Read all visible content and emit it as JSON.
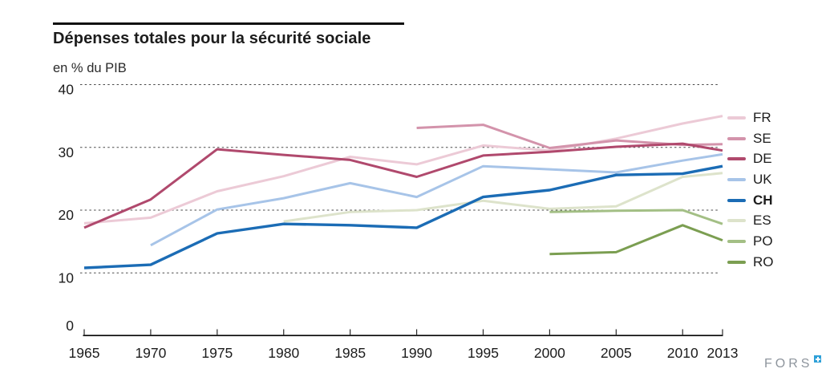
{
  "header": {
    "title": "Dépenses totales pour la sécurité sociale",
    "subtitle": "en % du PIB"
  },
  "chart_data": {
    "type": "line",
    "x": [
      1965,
      1970,
      1975,
      1980,
      1985,
      1990,
      1995,
      2000,
      2005,
      2010,
      2013
    ],
    "x_tick_labels": [
      "1965",
      "1970",
      "1975",
      "1980",
      "1985",
      "1990",
      "1995",
      "2000",
      "2005",
      "2010",
      "2013"
    ],
    "y_ticks": [
      0,
      10,
      20,
      30,
      40
    ],
    "ylim": [
      0,
      42
    ],
    "grid": "horizontal dashed at 10, 20, 30, 40",
    "legend_position": "right",
    "series": [
      {
        "name": "ES",
        "color": "#dde3cb",
        "bold": false,
        "values": [
          null,
          null,
          null,
          18.2,
          19.7,
          20.0,
          21.5,
          20.2,
          20.6,
          25.3,
          25.9
        ]
      },
      {
        "name": "PO",
        "color": "#a3bf85",
        "bold": false,
        "values": [
          null,
          null,
          null,
          null,
          null,
          null,
          null,
          19.7,
          19.9,
          20.0,
          17.8
        ]
      },
      {
        "name": "RO",
        "color": "#7b9e51",
        "bold": false,
        "values": [
          null,
          null,
          null,
          null,
          null,
          null,
          null,
          13.0,
          13.3,
          17.6,
          15.2
        ]
      },
      {
        "name": "FR",
        "color": "#eccad6",
        "bold": false,
        "values": [
          17.9,
          18.8,
          23.0,
          25.4,
          28.5,
          27.3,
          30.3,
          29.5,
          31.4,
          33.8,
          35.0
        ]
      },
      {
        "name": "SE",
        "color": "#d393ab",
        "bold": false,
        "values": [
          null,
          null,
          null,
          null,
          null,
          33.1,
          33.6,
          29.9,
          31.1,
          30.4,
          30.5
        ]
      },
      {
        "name": "DE",
        "color": "#b0496d",
        "bold": false,
        "values": [
          17.2,
          21.7,
          29.7,
          28.8,
          28.0,
          25.3,
          28.7,
          29.3,
          30.1,
          30.6,
          29.5
        ]
      },
      {
        "name": "UK",
        "color": "#a7c4e8",
        "bold": false,
        "values": [
          null,
          14.4,
          20.1,
          21.9,
          24.3,
          22.1,
          27.0,
          26.5,
          26.0,
          27.9,
          28.9
        ]
      },
      {
        "name": "CH",
        "color": "#1b6cb5",
        "bold": true,
        "values": [
          10.8,
          11.3,
          16.3,
          17.8,
          17.6,
          17.2,
          22.1,
          23.2,
          25.6,
          25.8,
          27.0
        ]
      }
    ],
    "legend_order": [
      "FR",
      "SE",
      "DE",
      "UK",
      "CH",
      "ES",
      "PO",
      "RO"
    ]
  },
  "footer": {
    "logo_text": "FORS"
  }
}
